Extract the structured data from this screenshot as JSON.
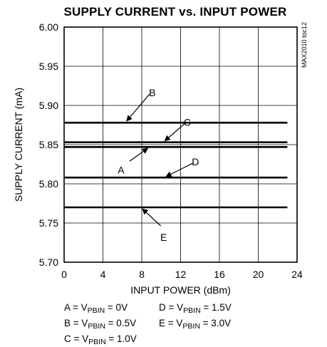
{
  "chart_data": {
    "type": "line",
    "title": "SUPPLY CURRENT vs. INPUT POWER",
    "xlabel": "INPUT POWER (dBm)",
    "ylabel": "SUPPLY CURRENT (mA)",
    "xlim": [
      0,
      24
    ],
    "ylim": [
      5.7,
      6.0
    ],
    "x_ticks": [
      "0",
      "4",
      "8",
      "12",
      "16",
      "20",
      "24"
    ],
    "y_ticks": [
      "5.70",
      "5.75",
      "5.80",
      "5.85",
      "5.90",
      "5.95",
      "6.00"
    ],
    "grid": true,
    "side_note": "MAX2010 toc12",
    "series": [
      {
        "name": "A",
        "x": [
          0,
          23
        ],
        "values": [
          5.847,
          5.847
        ]
      },
      {
        "name": "B",
        "x": [
          0,
          23
        ],
        "values": [
          5.878,
          5.878
        ]
      },
      {
        "name": "C",
        "x": [
          0,
          23
        ],
        "values": [
          5.853,
          5.853
        ]
      },
      {
        "name": "D",
        "x": [
          0,
          23
        ],
        "values": [
          5.808,
          5.808
        ]
      },
      {
        "name": "E",
        "x": [
          0,
          23
        ],
        "values": [
          5.77,
          5.77
        ]
      }
    ],
    "annotations": [
      {
        "label": "B",
        "at_x": 6.3,
        "at_y": 5.878
      },
      {
        "label": "C",
        "at_x": 10.2,
        "at_y": 5.853
      },
      {
        "label": "A",
        "at_x": 8.8,
        "at_y": 5.847
      },
      {
        "label": "D",
        "at_x": 10.3,
        "at_y": 5.808
      },
      {
        "label": "E",
        "at_x": 7.9,
        "at_y": 5.77
      }
    ],
    "legend": [
      {
        "key": "A",
        "eq": " = V",
        "sub": "PBIN",
        "val": " = 0V"
      },
      {
        "key": "B",
        "eq": " = V",
        "sub": "PBIN",
        "val": " = 0.5V"
      },
      {
        "key": "C",
        "eq": " = V",
        "sub": "PBIN",
        "val": " = 1.0V"
      },
      {
        "key": "D",
        "eq": " = V",
        "sub": "PBIN",
        "val": " = 1.5V"
      },
      {
        "key": "E",
        "eq": " = V",
        "sub": "PBIN",
        "val": " = 3.0V"
      }
    ]
  }
}
